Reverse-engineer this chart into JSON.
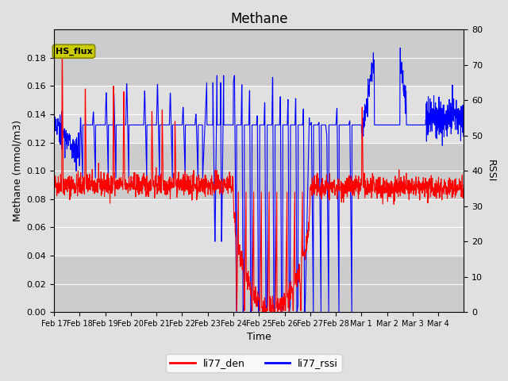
{
  "title": "Methane",
  "xlabel": "Time",
  "ylabel_left": "Methane (mmol/m3)",
  "ylabel_right": "RSSI",
  "ylim_left": [
    0,
    0.2
  ],
  "ylim_right": [
    0,
    80
  ],
  "yticks_left": [
    0.0,
    0.02,
    0.04,
    0.06,
    0.08,
    0.1,
    0.12,
    0.14,
    0.16,
    0.18
  ],
  "yticks_right": [
    0,
    10,
    20,
    30,
    40,
    50,
    60,
    70,
    80
  ],
  "xtick_labels": [
    "Feb 17",
    "Feb 18",
    "Feb 19",
    "Feb 20",
    "Feb 21",
    "Feb 22",
    "Feb 23",
    "Feb 24",
    "Feb 25",
    "Feb 26",
    "Feb 27",
    "Feb 28",
    "Mar 1",
    "Mar 2",
    "Mar 3",
    "Mar 4"
  ],
  "color_red": "#FF0000",
  "color_blue": "#0000FF",
  "legend_red": "li77_den",
  "legend_blue": "li77_rssi",
  "annotation_text": "HS_flux",
  "annotation_color": "#CCCC00",
  "background_color": "#E0E0E0",
  "linewidth": 0.8,
  "title_fontsize": 12
}
